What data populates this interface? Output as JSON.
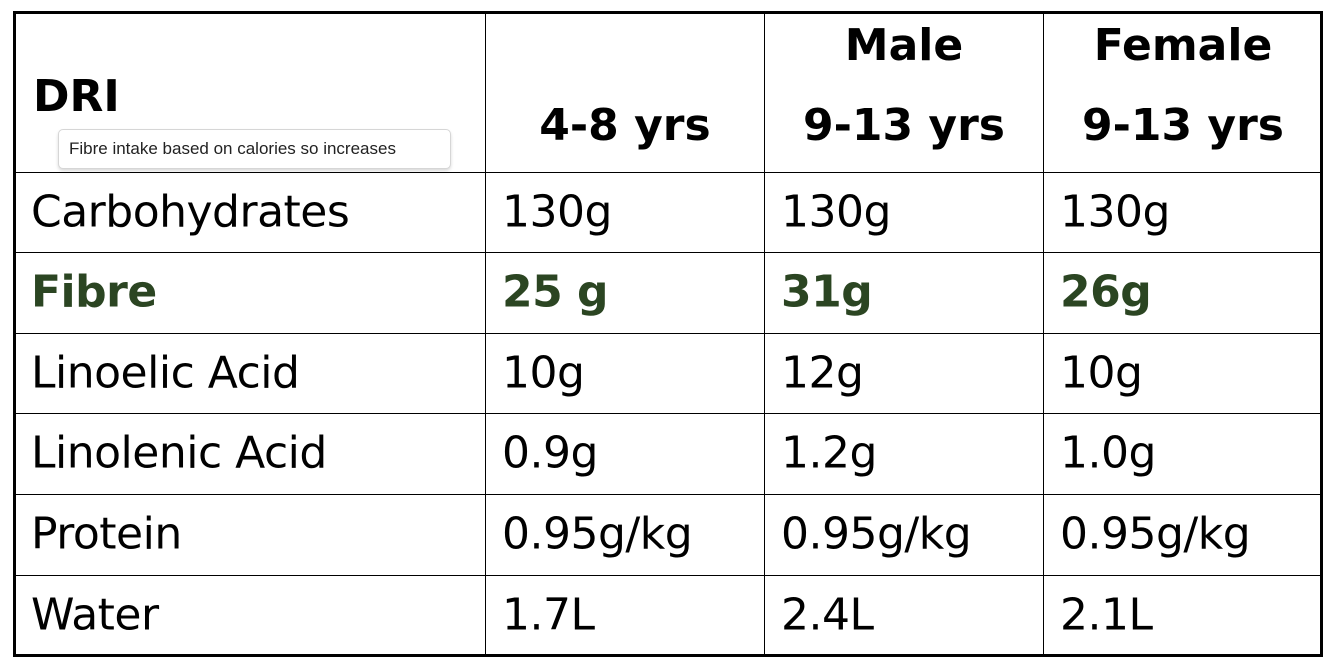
{
  "header": {
    "title": "DRI",
    "note": "Fibre intake based on calories so increases"
  },
  "table": {
    "columns": [
      [
        "4-8 yrs"
      ],
      [
        "Male",
        "9-13 yrs"
      ],
      [
        "Female",
        "9-13 yrs"
      ]
    ],
    "rows": [
      [
        "Carbohydrates",
        "130g",
        "130g",
        "130g"
      ],
      [
        "Fibre",
        "25 g",
        "31g",
        "26g"
      ],
      [
        "Linoelic Acid",
        "10g",
        "12g",
        "10g"
      ],
      [
        "Linolenic Acid",
        "0.9g",
        "1.2g",
        "1.0g"
      ],
      [
        "Protein",
        "0.95g/kg",
        "0.95g/kg",
        "0.95g/kg"
      ],
      [
        "Water",
        "1.7L",
        "2.4L",
        "2.1L"
      ]
    ],
    "highlight_row": 1,
    "highlight_color": "#2b4522"
  }
}
